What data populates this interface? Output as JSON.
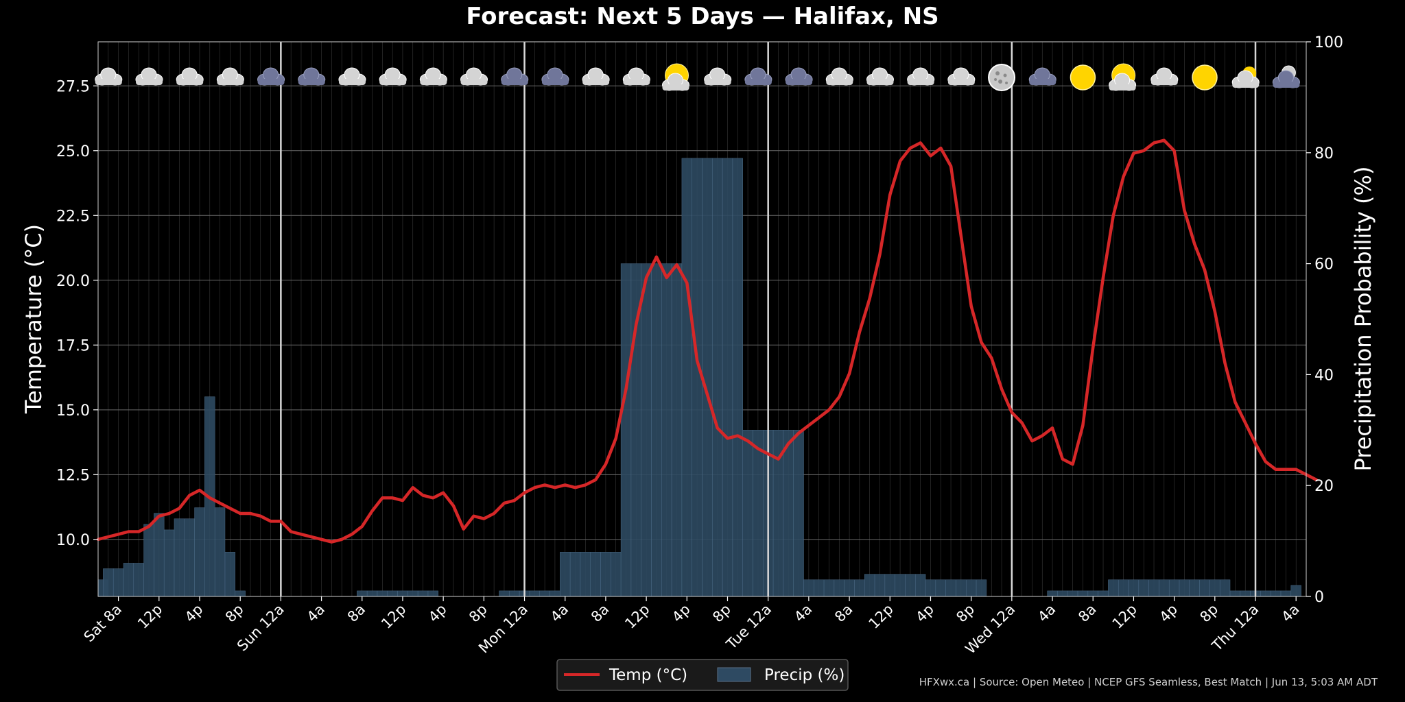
{
  "chart_data": {
    "type": "line+bar",
    "title": "Forecast: Next 5 Days — Halifax, NS",
    "ylabel_left": "Temperature (°C)",
    "ylabel_right": "Precipitation Probability (%)",
    "ylim_left": [
      7.8,
      29.2
    ],
    "ylim_right": [
      0,
      100
    ],
    "left_ticks": [
      "10.0",
      "12.5",
      "15.0",
      "17.5",
      "20.0",
      "22.5",
      "25.0",
      "27.5"
    ],
    "left_tick_values": [
      10.0,
      12.5,
      15.0,
      17.5,
      20.0,
      22.5,
      25.0,
      27.5
    ],
    "right_ticks": [
      "0",
      "20",
      "40",
      "60",
      "80",
      "100"
    ],
    "right_tick_values": [
      0,
      20,
      40,
      60,
      80,
      100
    ],
    "x_start": "Sat 6a",
    "x_range_hours": [
      0,
      119
    ],
    "x_tick_hours": [
      2,
      6,
      10,
      14,
      18,
      22,
      26,
      30,
      34,
      38,
      42,
      46,
      50,
      54,
      58,
      62,
      66,
      70,
      74,
      78,
      82,
      86,
      90,
      94,
      98,
      102,
      106,
      110,
      114,
      118
    ],
    "x_tick_labels": [
      "Sat 8a",
      "12p",
      "4p",
      "8p",
      "Sun 12a",
      "4a",
      "8a",
      "12p",
      "4p",
      "8p",
      "Mon 12a",
      "4a",
      "8a",
      "12p",
      "4p",
      "8p",
      "Tue 12a",
      "4a",
      "8a",
      "12p",
      "4p",
      "8p",
      "Wed 12a",
      "4a",
      "8a",
      "12p",
      "4p",
      "8p",
      "Thu 12a",
      "4a"
    ],
    "day_boundaries_hours": [
      18,
      42,
      66,
      90,
      114
    ],
    "grid": true,
    "legend_position": "bottom-center",
    "series": [
      {
        "name": "Temp (°C)",
        "type": "line",
        "axis": "left",
        "color": "#d62728",
        "values": [
          10.0,
          10.1,
          10.2,
          10.3,
          10.3,
          10.5,
          10.9,
          11.0,
          11.2,
          11.7,
          11.9,
          11.6,
          11.4,
          11.2,
          11.0,
          11.0,
          10.9,
          10.7,
          10.7,
          10.3,
          10.2,
          10.1,
          10.0,
          9.9,
          10.0,
          10.2,
          10.5,
          11.1,
          11.6,
          11.6,
          11.5,
          12.0,
          11.7,
          11.6,
          11.8,
          11.3,
          10.4,
          10.9,
          10.8,
          11.0,
          11.4,
          11.5,
          11.8,
          12.0,
          12.1,
          12.0,
          12.1,
          12.0,
          12.1,
          12.3,
          12.9,
          13.9,
          15.8,
          18.3,
          20.1,
          20.9,
          20.1,
          20.6,
          19.9,
          16.9,
          15.6,
          14.3,
          13.9,
          14.0,
          13.8,
          13.5,
          13.3,
          13.1,
          13.7,
          14.1,
          14.4,
          14.7,
          15.0,
          15.5,
          16.4,
          18.0,
          19.3,
          21.0,
          23.3,
          24.6,
          25.1,
          25.3,
          24.8,
          25.1,
          24.4,
          21.7,
          19.0,
          17.6,
          17.0,
          15.8,
          14.9,
          14.5,
          13.8,
          14.0,
          14.3,
          13.1,
          12.9,
          14.4,
          17.4,
          20.1,
          22.5,
          24.0,
          24.9,
          25.0,
          25.3,
          25.4,
          25.0,
          22.7,
          21.4,
          20.4,
          18.8,
          16.8,
          15.3,
          14.5,
          13.7,
          13.0,
          12.7,
          12.7,
          12.7,
          12.5,
          12.3
        ]
      },
      {
        "name": "Precip (%)",
        "type": "bar",
        "axis": "right",
        "color": "#2e4a62",
        "values": [
          3,
          5,
          5,
          6,
          6,
          13,
          15,
          12,
          14,
          14,
          16,
          36,
          16,
          8,
          1,
          0,
          0,
          0,
          0,
          0,
          0,
          0,
          0,
          0,
          0,
          0,
          1,
          1,
          1,
          1,
          1,
          1,
          1,
          1,
          0,
          0,
          0,
          0,
          0,
          0,
          1,
          1,
          1,
          1,
          1,
          1,
          8,
          8,
          8,
          8,
          8,
          8,
          60,
          60,
          60,
          60,
          60,
          60,
          79,
          79,
          79,
          79,
          79,
          79,
          30,
          30,
          30,
          30,
          30,
          30,
          3,
          3,
          3,
          3,
          3,
          3,
          4,
          4,
          4,
          4,
          4,
          4,
          3,
          3,
          3,
          3,
          3,
          3,
          0,
          0,
          0,
          0,
          0,
          0,
          1,
          1,
          1,
          1,
          1,
          1,
          3,
          3,
          3,
          3,
          3,
          3,
          3,
          3,
          3,
          3,
          3,
          3,
          1,
          1,
          1,
          1,
          1,
          1,
          2
        ]
      }
    ],
    "weather_icons": [
      {
        "hour": 1,
        "icon": "cloud-icon"
      },
      {
        "hour": 5,
        "icon": "cloud-icon"
      },
      {
        "hour": 9,
        "icon": "cloud-icon"
      },
      {
        "hour": 13,
        "icon": "cloud-icon"
      },
      {
        "hour": 17,
        "icon": "dark-cloud-icon"
      },
      {
        "hour": 21,
        "icon": "dark-cloud-icon"
      },
      {
        "hour": 25,
        "icon": "cloud-icon"
      },
      {
        "hour": 29,
        "icon": "cloud-icon"
      },
      {
        "hour": 33,
        "icon": "cloud-icon"
      },
      {
        "hour": 37,
        "icon": "cloud-icon"
      },
      {
        "hour": 41,
        "icon": "dark-cloud-icon"
      },
      {
        "hour": 45,
        "icon": "dark-cloud-icon"
      },
      {
        "hour": 49,
        "icon": "cloud-icon"
      },
      {
        "hour": 53,
        "icon": "cloud-icon"
      },
      {
        "hour": 57,
        "icon": "partly-sunny-icon"
      },
      {
        "hour": 61,
        "icon": "cloud-icon"
      },
      {
        "hour": 65,
        "icon": "dark-cloud-icon"
      },
      {
        "hour": 69,
        "icon": "dark-cloud-icon"
      },
      {
        "hour": 73,
        "icon": "cloud-icon"
      },
      {
        "hour": 77,
        "icon": "cloud-icon"
      },
      {
        "hour": 81,
        "icon": "cloud-icon"
      },
      {
        "hour": 85,
        "icon": "cloud-icon"
      },
      {
        "hour": 89,
        "icon": "moon-icon"
      },
      {
        "hour": 93,
        "icon": "dark-cloud-icon"
      },
      {
        "hour": 97,
        "icon": "sun-icon"
      },
      {
        "hour": 101,
        "icon": "partly-sunny-icon"
      },
      {
        "hour": 105,
        "icon": "cloud-icon"
      },
      {
        "hour": 109,
        "icon": "sun-icon"
      },
      {
        "hour": 113,
        "icon": "partly-cloudy-icon"
      },
      {
        "hour": 117,
        "icon": "partly-cloudy-night-icon"
      }
    ]
  },
  "legend": {
    "temp_label": "Temp (°C)",
    "precip_label": "Precip (%)"
  },
  "footer": "HFXwx.ca | Source: Open Meteo | NCEP GFS Seamless, Best Match | Jun 13, 5:03 AM ADT",
  "colors": {
    "background": "#000000",
    "temp_line": "#d62728",
    "precip_bar": "#2e4a62",
    "grid": "#5a5a5a",
    "day_line": "#cfcfcf"
  }
}
